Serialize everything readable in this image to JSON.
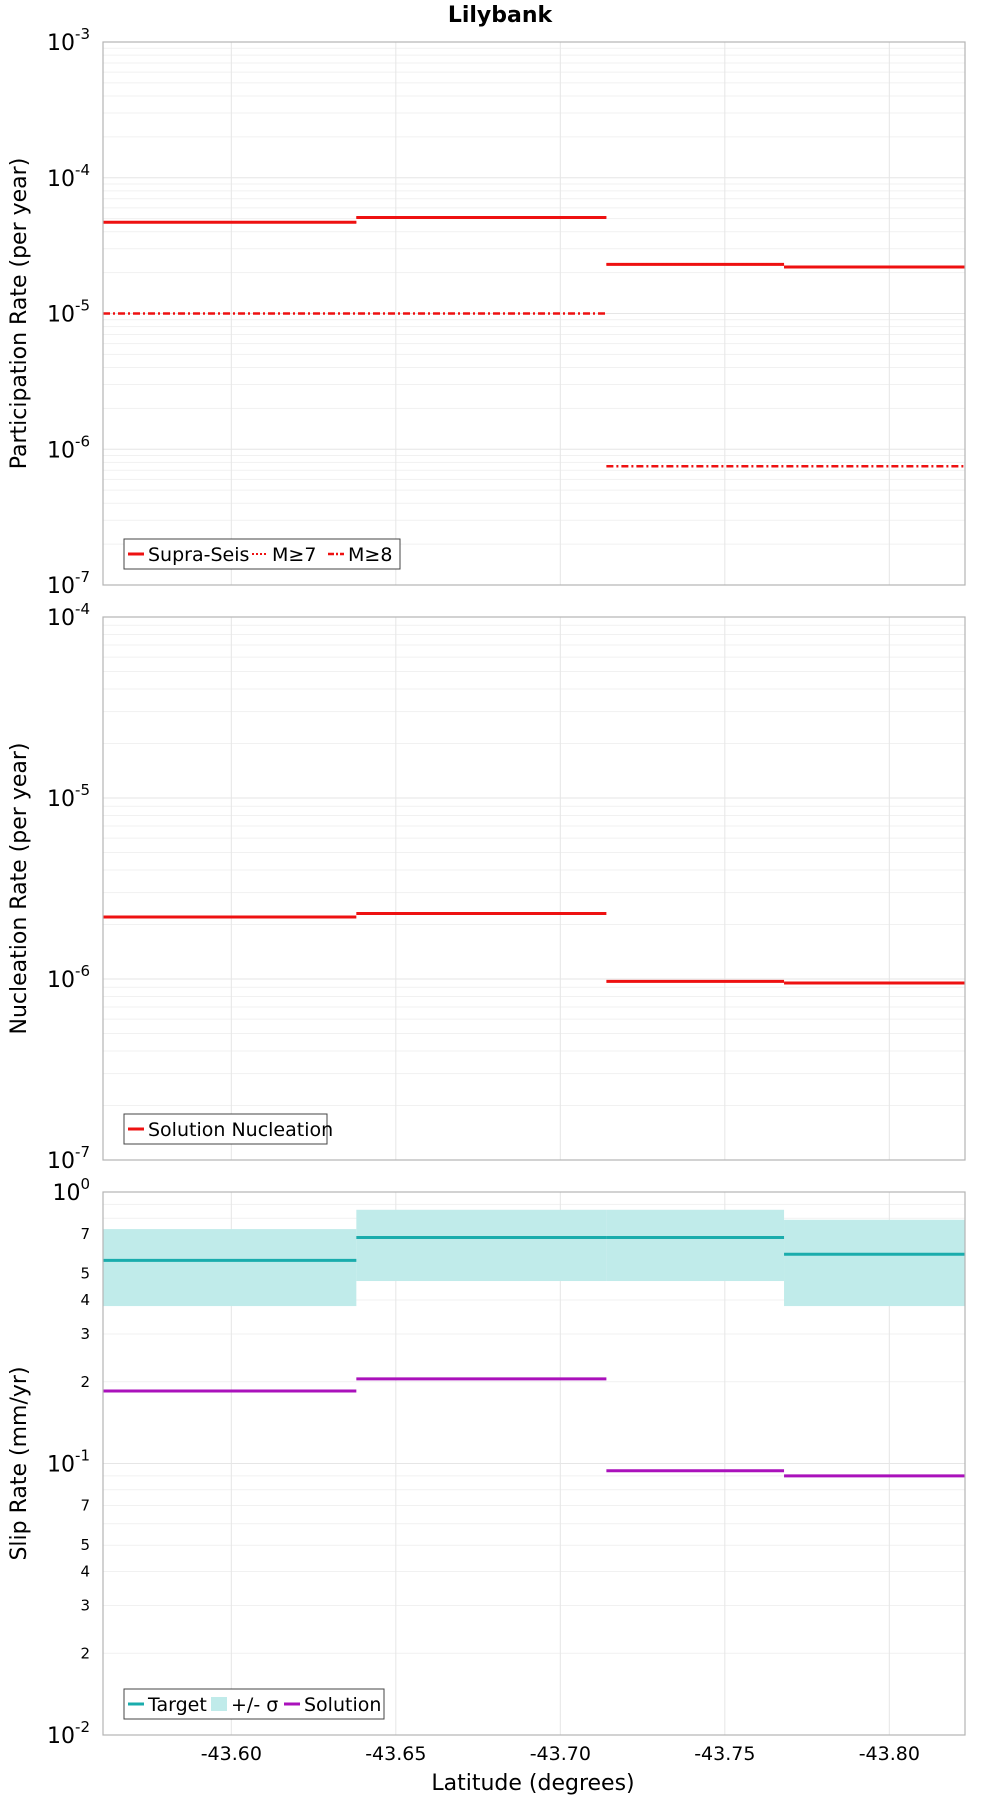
{
  "chart_data": {
    "title": "Lilybank",
    "xlabel": "Latitude (degrees)",
    "xlim": [
      -43.561,
      -43.823
    ],
    "x_ticks": [
      -43.6,
      -43.65,
      -43.7,
      -43.75,
      -43.8
    ],
    "x_tick_labels": [
      "-43.60",
      "-43.65",
      "-43.70",
      "-43.75",
      "-43.80"
    ],
    "panels": [
      {
        "type": "line",
        "ylabel": "Participation Rate (per year)",
        "yscale": "log",
        "ylim": [
          1e-07,
          0.001
        ],
        "grid": true,
        "legend_position": "bottom-left",
        "series": [
          {
            "name": "Supra-Seis",
            "color": "#ee1111",
            "style": "solid",
            "segments": [
              {
                "x": [
                  -43.561,
                  -43.638
                ],
                "y": 4.7e-05
              },
              {
                "x": [
                  -43.638,
                  -43.714
                ],
                "y": 5.1e-05
              },
              {
                "x": [
                  -43.714,
                  -43.768
                ],
                "y": 2.3e-05
              },
              {
                "x": [
                  -43.768,
                  -43.823
                ],
                "y": 2.2e-05
              }
            ]
          },
          {
            "name": "M≥7",
            "color": "#ee1111",
            "style": "dotted",
            "segments": [
              {
                "x": [
                  -43.561,
                  -43.638
                ],
                "y": 4.7e-05
              },
              {
                "x": [
                  -43.638,
                  -43.714
                ],
                "y": 5.1e-05
              },
              {
                "x": [
                  -43.714,
                  -43.768
                ],
                "y": 2.3e-05
              },
              {
                "x": [
                  -43.768,
                  -43.823
                ],
                "y": 2.2e-05
              }
            ]
          },
          {
            "name": "M≥8",
            "color": "#ee1111",
            "style": "dashdot",
            "segments": [
              {
                "x": [
                  -43.561,
                  -43.714
                ],
                "y": 1e-05
              },
              {
                "x": [
                  -43.714,
                  -43.823
                ],
                "y": 7.5e-07
              }
            ]
          }
        ]
      },
      {
        "type": "line",
        "ylabel": "Nucleation Rate (per year)",
        "yscale": "log",
        "ylim": [
          1e-07,
          0.0001
        ],
        "grid": true,
        "legend_position": "bottom-left",
        "series": [
          {
            "name": "Solution Nucleation",
            "color": "#ee1111",
            "style": "solid",
            "segments": [
              {
                "x": [
                  -43.561,
                  -43.638
                ],
                "y": 2.2e-06
              },
              {
                "x": [
                  -43.638,
                  -43.714
                ],
                "y": 2.3e-06
              },
              {
                "x": [
                  -43.714,
                  -43.768
                ],
                "y": 9.7e-07
              },
              {
                "x": [
                  -43.768,
                  -43.823
                ],
                "y": 9.5e-07
              }
            ]
          }
        ]
      },
      {
        "type": "line",
        "ylabel": "Slip Rate (mm/yr)",
        "yscale": "log",
        "ylim": [
          0.01,
          1
        ],
        "grid": true,
        "legend_position": "bottom-left",
        "series": [
          {
            "name": "Target",
            "color": "#1aacac",
            "style": "solid",
            "segments": [
              {
                "x": [
                  -43.561,
                  -43.638
                ],
                "y": 0.56
              },
              {
                "x": [
                  -43.638,
                  -43.714
                ],
                "y": 0.68
              },
              {
                "x": [
                  -43.714,
                  -43.768
                ],
                "y": 0.68
              },
              {
                "x": [
                  -43.768,
                  -43.823
                ],
                "y": 0.59
              }
            ]
          },
          {
            "name": "+/- σ",
            "color": "#c0ebea",
            "style": "band",
            "segments": [
              {
                "x": [
                  -43.561,
                  -43.638
                ],
                "y_low": 0.38,
                "y_high": 0.73
              },
              {
                "x": [
                  -43.638,
                  -43.714
                ],
                "y_low": 0.47,
                "y_high": 0.86
              },
              {
                "x": [
                  -43.714,
                  -43.768
                ],
                "y_low": 0.47,
                "y_high": 0.86
              },
              {
                "x": [
                  -43.768,
                  -43.823
                ],
                "y_low": 0.38,
                "y_high": 0.79
              }
            ]
          },
          {
            "name": "Solution",
            "color": "#aa11bb",
            "style": "solid",
            "segments": [
              {
                "x": [
                  -43.561,
                  -43.638
                ],
                "y": 0.185
              },
              {
                "x": [
                  -43.638,
                  -43.714
                ],
                "y": 0.205
              },
              {
                "x": [
                  -43.714,
                  -43.768
                ],
                "y": 0.094
              },
              {
                "x": [
                  -43.768,
                  -43.823
                ],
                "y": 0.09
              }
            ]
          }
        ]
      }
    ]
  }
}
